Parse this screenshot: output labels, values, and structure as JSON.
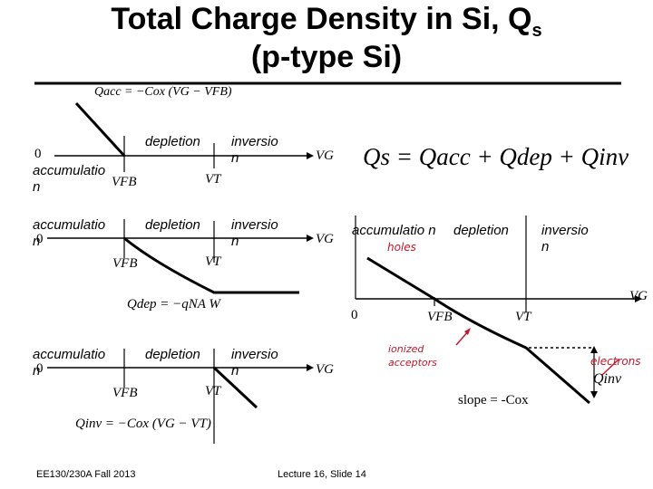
{
  "title": {
    "line1": "Total Charge Density in Si, Q",
    "subscript": "s",
    "line2": "(p-type Si)"
  },
  "eq_acc": "Qacc = −Cox (VG − VFB)",
  "eq_dep": "Qdep = −qNA W",
  "eq_inv": "Qinv = −Cox (VG − VT)",
  "eq_total": "Qs = Qacc + Qdep + Qinv",
  "panel_acc": {
    "zero": "0",
    "accumulation": "accumulatio n",
    "depletion": "depletion",
    "inversion": "inversio n",
    "vfb": "VFB",
    "vt": "VT",
    "vg": "VG"
  },
  "panel_dep": {
    "zero": "0",
    "accumulation": "accumulatio n",
    "depletion": "depletion",
    "inversion": "inversio n",
    "vfb": "VFB",
    "vt": "VT",
    "vg": "VG"
  },
  "panel_inv": {
    "zero": "0",
    "accumulation": "accumulatio n",
    "depletion": "depletion",
    "inversion": "inversio n",
    "vfb": "VFB",
    "vt": "VT",
    "vg": "VG"
  },
  "panel_total": {
    "accumulation": "accumulatio n",
    "depletion": "depletion",
    "inversion": "inversio n",
    "zero": "0",
    "vfb": "VFB",
    "vt": "VT",
    "vg": "VG",
    "qinv": "Qinv",
    "slope": "slope = -Cox"
  },
  "annotations": {
    "holes": "holes",
    "ionized_acceptors": "ionized acceptors",
    "electrons": "electrons"
  },
  "footer": {
    "course": "EE130/230A Fall 2013",
    "slide": "Lecture 16, Slide 14"
  }
}
